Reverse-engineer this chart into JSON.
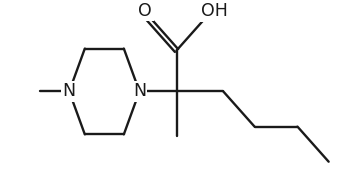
{
  "bg_color": "#ffffff",
  "line_color": "#1a1a1a",
  "line_width": 1.7,
  "font_size": 12.5,
  "figsize": [
    3.53,
    1.78
  ],
  "dpi": 100,
  "xlim": [
    -0.8,
    7.5
  ],
  "ylim": [
    -2.2,
    2.2
  ],
  "piperazine": {
    "lNx": 0.6,
    "lNy": 0.0,
    "rNx": 2.4,
    "rNy": 0.0,
    "tlx": 1.0,
    "tly": 1.1,
    "trx": 2.0,
    "try": 1.1,
    "blx": 1.0,
    "bly": -1.1,
    "brx": 2.0,
    "bry": -1.1
  },
  "methyl_left_end_x": -0.15,
  "methyl_left_end_y": 0.0,
  "qcx": 3.35,
  "qcy": 0.0,
  "methyl_down_x": 3.35,
  "methyl_down_y": -1.15,
  "butyl": {
    "c2x": 4.55,
    "c2y": 0.0,
    "c3x": 5.35,
    "c3y": -0.9,
    "c4x": 6.45,
    "c4y": -0.9,
    "c5x": 7.25,
    "c5y": -1.8
  },
  "carboxyl": {
    "cox": 3.35,
    "coy": 1.05,
    "ox": 2.55,
    "oy": 1.95,
    "ohx": 4.15,
    "ohy": 1.95
  }
}
